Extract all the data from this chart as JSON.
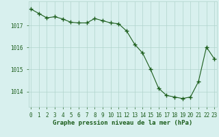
{
  "x": [
    0,
    1,
    2,
    3,
    4,
    5,
    6,
    7,
    8,
    9,
    10,
    11,
    12,
    13,
    14,
    15,
    16,
    17,
    18,
    19,
    20,
    21,
    22,
    23
  ],
  "y": [
    1017.75,
    1017.55,
    1017.35,
    1017.4,
    1017.3,
    1017.15,
    1017.12,
    1017.12,
    1017.32,
    1017.22,
    1017.12,
    1017.08,
    1016.75,
    1016.15,
    1015.75,
    1015.0,
    1014.15,
    1013.82,
    1013.75,
    1013.68,
    1013.75,
    1014.45,
    1016.02,
    1015.48
  ],
  "line_color": "#1a5c1a",
  "marker": "+",
  "marker_size": 4,
  "bg_color": "#d8f0ee",
  "grid_color": "#b0d4cc",
  "xlabel": "Graphe pression niveau de la mer (hPa)",
  "xlabel_color": "#1a5c1a",
  "tick_color": "#1a5c1a",
  "ylabel_ticks": [
    1014,
    1015,
    1016,
    1017
  ],
  "xlim": [
    -0.3,
    23.3
  ],
  "ylim": [
    1013.3,
    1018.1
  ],
  "xlabel_fontsize": 6.5,
  "tick_fontsize": 5.5
}
